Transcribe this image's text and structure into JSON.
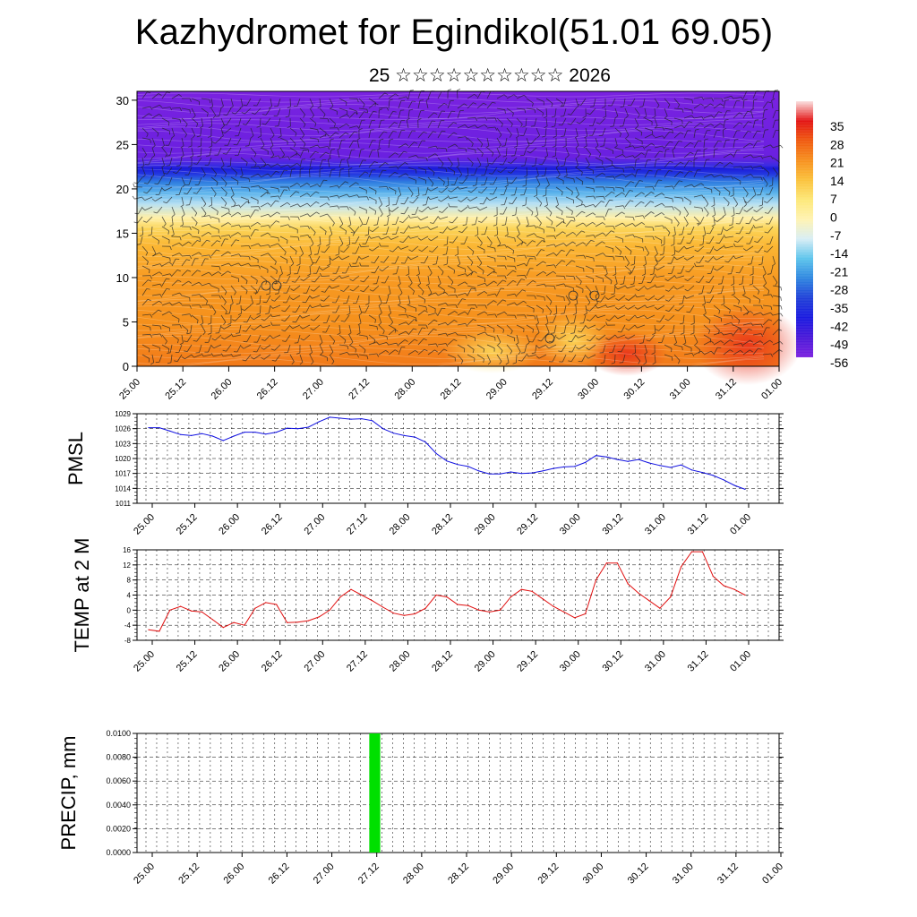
{
  "header": {
    "title": "Kazhydromet for Egindikol(51.01 69.05)",
    "subtitle": "25 ☆☆☆☆☆☆☆☆☆☆ 2026"
  },
  "time_labels": [
    "25.00",
    "25.12",
    "26.00",
    "26.12",
    "27.00",
    "27.12",
    "28.00",
    "28.12",
    "29.00",
    "29.12",
    "30.00",
    "30.12",
    "31.00",
    "31.12",
    "01.00"
  ],
  "chart_data": [
    {
      "type": "heatmap",
      "name": "temperature-cross-section",
      "title": "",
      "xlabel": "",
      "ylabel": "",
      "x_categories": [
        "25.00",
        "25.12",
        "26.00",
        "26.12",
        "27.00",
        "27.12",
        "28.00",
        "28.12",
        "29.00",
        "29.12",
        "30.00",
        "30.12",
        "31.00",
        "31.12",
        "01.00"
      ],
      "ylim": [
        0,
        31
      ],
      "yticks": [
        0,
        5,
        10,
        15,
        20,
        25,
        30
      ],
      "colorbar": {
        "labels": [
          "35",
          "28",
          "21",
          "14",
          "7",
          "0",
          "-7",
          "-14",
          "-21",
          "-28",
          "-35",
          "-42",
          "-49",
          "-56"
        ],
        "stops": [
          "#fbe0e0",
          "#e31414",
          "#f05a10",
          "#f7901e",
          "#fbc23c",
          "#fde878",
          "#fff3b3",
          "#d8eef5",
          "#5cc4ec",
          "#2f86e0",
          "#2040d8",
          "#1a1ae0",
          "#4a18d8",
          "#7c22e0"
        ]
      },
      "overlay": "wind barbs"
    },
    {
      "type": "line",
      "name": "PMSL",
      "ylabel": "PMSL",
      "ylim": [
        1011,
        1029
      ],
      "yticks": [
        1011,
        1014,
        1017,
        1020,
        1023,
        1026,
        1029
      ],
      "color": "#1010e0",
      "x": [
        0,
        1,
        2,
        3,
        4,
        5,
        6,
        7,
        8,
        9,
        10,
        11,
        12,
        13,
        14,
        15,
        16,
        17,
        18,
        19,
        20,
        21,
        22,
        23,
        24,
        25,
        26,
        27,
        28,
        29,
        30,
        31,
        32,
        33,
        34,
        35,
        36,
        37,
        38,
        39,
        40,
        41,
        42,
        43,
        44,
        45,
        46,
        47,
        48,
        49,
        50,
        51,
        52,
        53,
        54,
        55,
        56
      ],
      "values": [
        1026.2,
        1026.2,
        1025.5,
        1024.8,
        1024.6,
        1025.0,
        1024.5,
        1023.6,
        1024.5,
        1025.3,
        1025.3,
        1024.9,
        1025.3,
        1026.1,
        1026.0,
        1026.3,
        1027.4,
        1028.3,
        1028.1,
        1027.9,
        1028.0,
        1027.6,
        1026.0,
        1025.1,
        1024.6,
        1024.3,
        1023.3,
        1021.0,
        1019.5,
        1018.8,
        1018.4,
        1017.5,
        1016.9,
        1016.9,
        1017.3,
        1017.0,
        1017.1,
        1017.5,
        1018.0,
        1018.3,
        1018.4,
        1019.2,
        1020.6,
        1020.3,
        1019.8,
        1019.4,
        1019.8,
        1019.1,
        1018.6,
        1018.2,
        1018.7,
        1017.7,
        1017.2,
        1016.6,
        1015.7,
        1014.6,
        1013.8
      ]
    },
    {
      "type": "line",
      "name": "TEMP at 2 M",
      "ylabel": "TEMP at 2 M",
      "ylim": [
        -8,
        16
      ],
      "yticks": [
        -8,
        -4,
        0,
        4,
        8,
        12,
        16
      ],
      "color": "#e01010",
      "x": [
        0,
        1,
        2,
        3,
        4,
        5,
        6,
        7,
        8,
        9,
        10,
        11,
        12,
        13,
        14,
        15,
        16,
        17,
        18,
        19,
        20,
        21,
        22,
        23,
        24,
        25,
        26,
        27,
        28,
        29,
        30,
        31,
        32,
        33,
        34,
        35,
        36,
        37,
        38,
        39,
        40,
        41,
        42,
        43,
        44,
        45,
        46,
        47,
        48,
        49,
        50,
        51,
        52,
        53,
        54,
        55,
        56
      ],
      "values": [
        -5.2,
        -5.6,
        0.0,
        1.0,
        -0.2,
        -0.5,
        -2.5,
        -4.6,
        -3.3,
        -4.0,
        0.5,
        2.0,
        1.5,
        -3.3,
        -3.2,
        -2.8,
        -1.8,
        0.0,
        3.5,
        5.5,
        4.0,
        2.5,
        0.8,
        -0.8,
        -1.4,
        -1.0,
        0.5,
        4.0,
        3.5,
        1.5,
        1.2,
        0.0,
        -0.5,
        0.0,
        3.5,
        5.5,
        5.0,
        3.0,
        1.0,
        -0.5,
        -2.0,
        -1.0,
        8.0,
        12.5,
        12.5,
        7.0,
        4.5,
        2.5,
        0.5,
        3.5,
        11.5,
        15.5,
        15.5,
        9.0,
        6.5,
        5.5,
        4.0
      ]
    },
    {
      "type": "bar",
      "name": "PRECIP",
      "ylabel": "PRECIP, mm",
      "ylim": [
        0,
        0.01
      ],
      "yticks": [
        "0.0000",
        "0.0020",
        "0.0040",
        "0.0060",
        "0.0080",
        "0.0100"
      ],
      "color": "#00e000",
      "bars": [
        {
          "x": 20.5,
          "width": 1,
          "value": 0.01
        }
      ]
    }
  ]
}
